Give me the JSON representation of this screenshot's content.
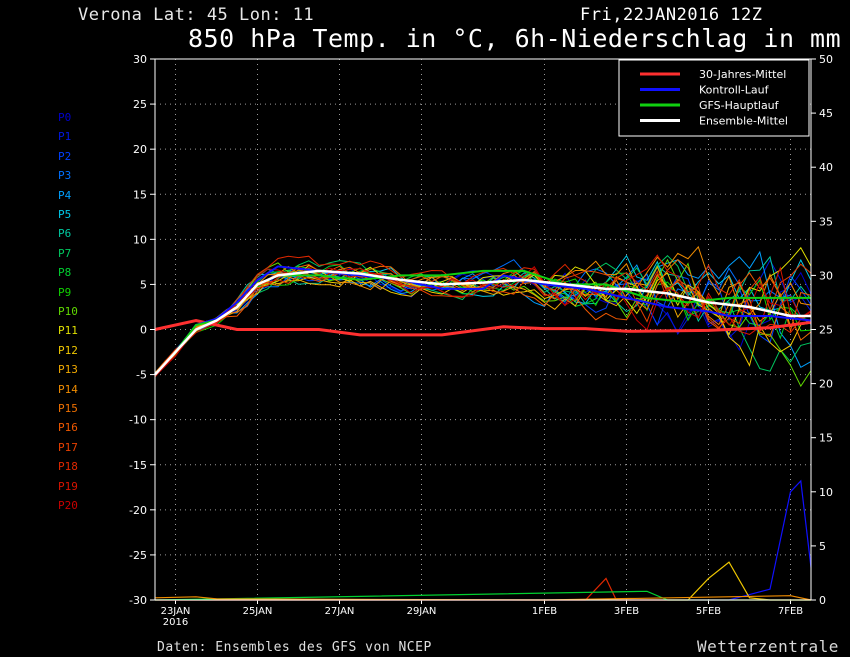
{
  "header": {
    "location": "Verona   Lat: 45 Lon: 11",
    "run": "Fri,22JAN2016 12Z",
    "title": "850 hPa Temp. in °C, 6h-Niederschlag in mm"
  },
  "footer": {
    "source": "Daten: Ensembles des GFS von NCEP",
    "brand": "Wetterzentrale"
  },
  "members": [
    {
      "label": "P0",
      "color": "#0000cc"
    },
    {
      "label": "P1",
      "color": "#0018e0"
    },
    {
      "label": "P2",
      "color": "#0040ff"
    },
    {
      "label": "P3",
      "color": "#0070ff"
    },
    {
      "label": "P4",
      "color": "#00a0ff"
    },
    {
      "label": "P5",
      "color": "#00c8e8"
    },
    {
      "label": "P6",
      "color": "#00c8a0"
    },
    {
      "label": "P7",
      "color": "#00c860"
    },
    {
      "label": "P8",
      "color": "#00d030"
    },
    {
      "label": "P9",
      "color": "#10d000"
    },
    {
      "label": "P10",
      "color": "#60d800"
    },
    {
      "label": "P11",
      "color": "#e0e000"
    },
    {
      "label": "P12",
      "color": "#f0c800"
    },
    {
      "label": "P13",
      "color": "#f0a800"
    },
    {
      "label": "P14",
      "color": "#f08c00"
    },
    {
      "label": "P15",
      "color": "#f07000"
    },
    {
      "label": "P16",
      "color": "#f05800"
    },
    {
      "label": "P17",
      "color": "#e84000"
    },
    {
      "label": "P18",
      "color": "#e02800"
    },
    {
      "label": "P19",
      "color": "#d81400"
    },
    {
      "label": "P20",
      "color": "#c80000"
    }
  ],
  "legend": [
    {
      "label": "30-Jahres-Mittel",
      "color": "#ff3030"
    },
    {
      "label": "Kontroll-Lauf",
      "color": "#1010ff"
    },
    {
      "label": "GFS-Hauptlauf",
      "color": "#10d010"
    },
    {
      "label": "Ensemble-Mittel",
      "color": "#ffffff"
    }
  ],
  "chart_data": {
    "type": "line",
    "x_unit": "hours after 22JAN2016 12Z",
    "xlim": [
      0,
      384
    ],
    "ylim": [
      -30,
      30
    ],
    "y_ticks": [
      30,
      25,
      20,
      15,
      10,
      5,
      0,
      -5,
      -10,
      -15,
      -20,
      -25,
      -30
    ],
    "y2lim": [
      0,
      50
    ],
    "y2_ticks": [
      50,
      45,
      40,
      35,
      30,
      25,
      20,
      15,
      10,
      5,
      0
    ],
    "x_ticks": [
      {
        "x": 12,
        "label": "23JAN",
        "sub": "2016"
      },
      {
        "x": 60,
        "label": "25JAN"
      },
      {
        "x": 108,
        "label": "27JAN"
      },
      {
        "x": 156,
        "label": "29JAN"
      },
      {
        "x": 228,
        "label": "1FEB"
      },
      {
        "x": 276,
        "label": "3FEB"
      },
      {
        "x": 324,
        "label": "5FEB"
      },
      {
        "x": 372,
        "label": "7FEB"
      }
    ],
    "grid": true,
    "legend_position": "top-right",
    "temp_series": [
      {
        "name": "30-Jahres-Mittel",
        "color": "#ff3030",
        "width": 3,
        "points": [
          [
            0,
            0
          ],
          [
            24,
            1
          ],
          [
            48,
            0
          ],
          [
            96,
            0
          ],
          [
            120,
            -0.6
          ],
          [
            168,
            -0.6
          ],
          [
            204,
            0.3
          ],
          [
            228,
            0.1
          ],
          [
            252,
            0.1
          ],
          [
            276,
            -0.2
          ],
          [
            324,
            -0.1
          ],
          [
            360,
            0.2
          ],
          [
            384,
            0.8
          ]
        ]
      },
      {
        "name": "Kontroll-Lauf",
        "color": "#1010ff",
        "width": 2,
        "points": [
          [
            0,
            -5
          ],
          [
            12,
            -2.5
          ],
          [
            24,
            0.5
          ],
          [
            36,
            1.2
          ],
          [
            48,
            3
          ],
          [
            60,
            5.5
          ],
          [
            72,
            7
          ],
          [
            96,
            6.5
          ],
          [
            120,
            6
          ],
          [
            144,
            5.5
          ],
          [
            168,
            4.5
          ],
          [
            192,
            4.5
          ],
          [
            204,
            6
          ],
          [
            228,
            5
          ],
          [
            252,
            4.5
          ],
          [
            276,
            3.5
          ],
          [
            300,
            2.5
          ],
          [
            324,
            2
          ],
          [
            336,
            1.5
          ],
          [
            360,
            1.5
          ],
          [
            384,
            1
          ]
        ]
      },
      {
        "name": "GFS-Hauptlauf",
        "color": "#10d010",
        "width": 2,
        "points": [
          [
            0,
            -5
          ],
          [
            12,
            -2.5
          ],
          [
            24,
            0.5
          ],
          [
            36,
            1
          ],
          [
            48,
            2.5
          ],
          [
            60,
            5
          ],
          [
            72,
            6
          ],
          [
            96,
            6
          ],
          [
            120,
            5.5
          ],
          [
            144,
            6
          ],
          [
            168,
            6
          ],
          [
            192,
            6.5
          ],
          [
            216,
            6.5
          ],
          [
            240,
            5
          ],
          [
            264,
            5
          ],
          [
            288,
            3.5
          ],
          [
            312,
            3
          ],
          [
            336,
            3.5
          ],
          [
            360,
            3.5
          ],
          [
            384,
            3.5
          ]
        ]
      },
      {
        "name": "Ensemble-Mittel",
        "color": "#ffffff",
        "width": 2.5,
        "points": [
          [
            0,
            -5
          ],
          [
            12,
            -2.5
          ],
          [
            24,
            0
          ],
          [
            36,
            1
          ],
          [
            48,
            2.5
          ],
          [
            60,
            5
          ],
          [
            72,
            6
          ],
          [
            96,
            6.5
          ],
          [
            120,
            6.2
          ],
          [
            144,
            5.5
          ],
          [
            168,
            5
          ],
          [
            192,
            5.2
          ],
          [
            216,
            5.5
          ],
          [
            240,
            5
          ],
          [
            264,
            4.5
          ],
          [
            276,
            4.5
          ],
          [
            300,
            4
          ],
          [
            324,
            3
          ],
          [
            348,
            2.5
          ],
          [
            372,
            1.5
          ],
          [
            384,
            1.5
          ]
        ]
      }
    ],
    "precip_series": [
      {
        "name": "Kontroll-Lauf",
        "color": "#1010ff",
        "points": [
          [
            0,
            0
          ],
          [
            336,
            0
          ],
          [
            348,
            0.5
          ],
          [
            360,
            1
          ],
          [
            372,
            10
          ],
          [
            378,
            11
          ],
          [
            384,
            3
          ]
        ]
      },
      {
        "name": "P12",
        "color": "#f0c800",
        "points": [
          [
            0,
            0
          ],
          [
            312,
            0
          ],
          [
            324,
            2
          ],
          [
            336,
            3.5
          ],
          [
            348,
            0.2
          ],
          [
            360,
            0
          ],
          [
            384,
            0
          ]
        ]
      },
      {
        "name": "P18",
        "color": "#e02800",
        "points": [
          [
            0,
            0
          ],
          [
            252,
            0
          ],
          [
            264,
            2
          ],
          [
            270,
            0
          ],
          [
            300,
            0
          ],
          [
            384,
            0
          ]
        ]
      },
      {
        "name": "P8",
        "color": "#00d030",
        "points": [
          [
            0,
            0
          ],
          [
            288,
            0.8
          ],
          [
            300,
            0
          ],
          [
            384,
            0
          ]
        ]
      },
      {
        "name": "P14",
        "color": "#f08c00",
        "points": [
          [
            0,
            0.2
          ],
          [
            24,
            0.3
          ],
          [
            36,
            0.1
          ],
          [
            228,
            0
          ],
          [
            372,
            0.4
          ],
          [
            384,
            0
          ]
        ]
      }
    ]
  }
}
